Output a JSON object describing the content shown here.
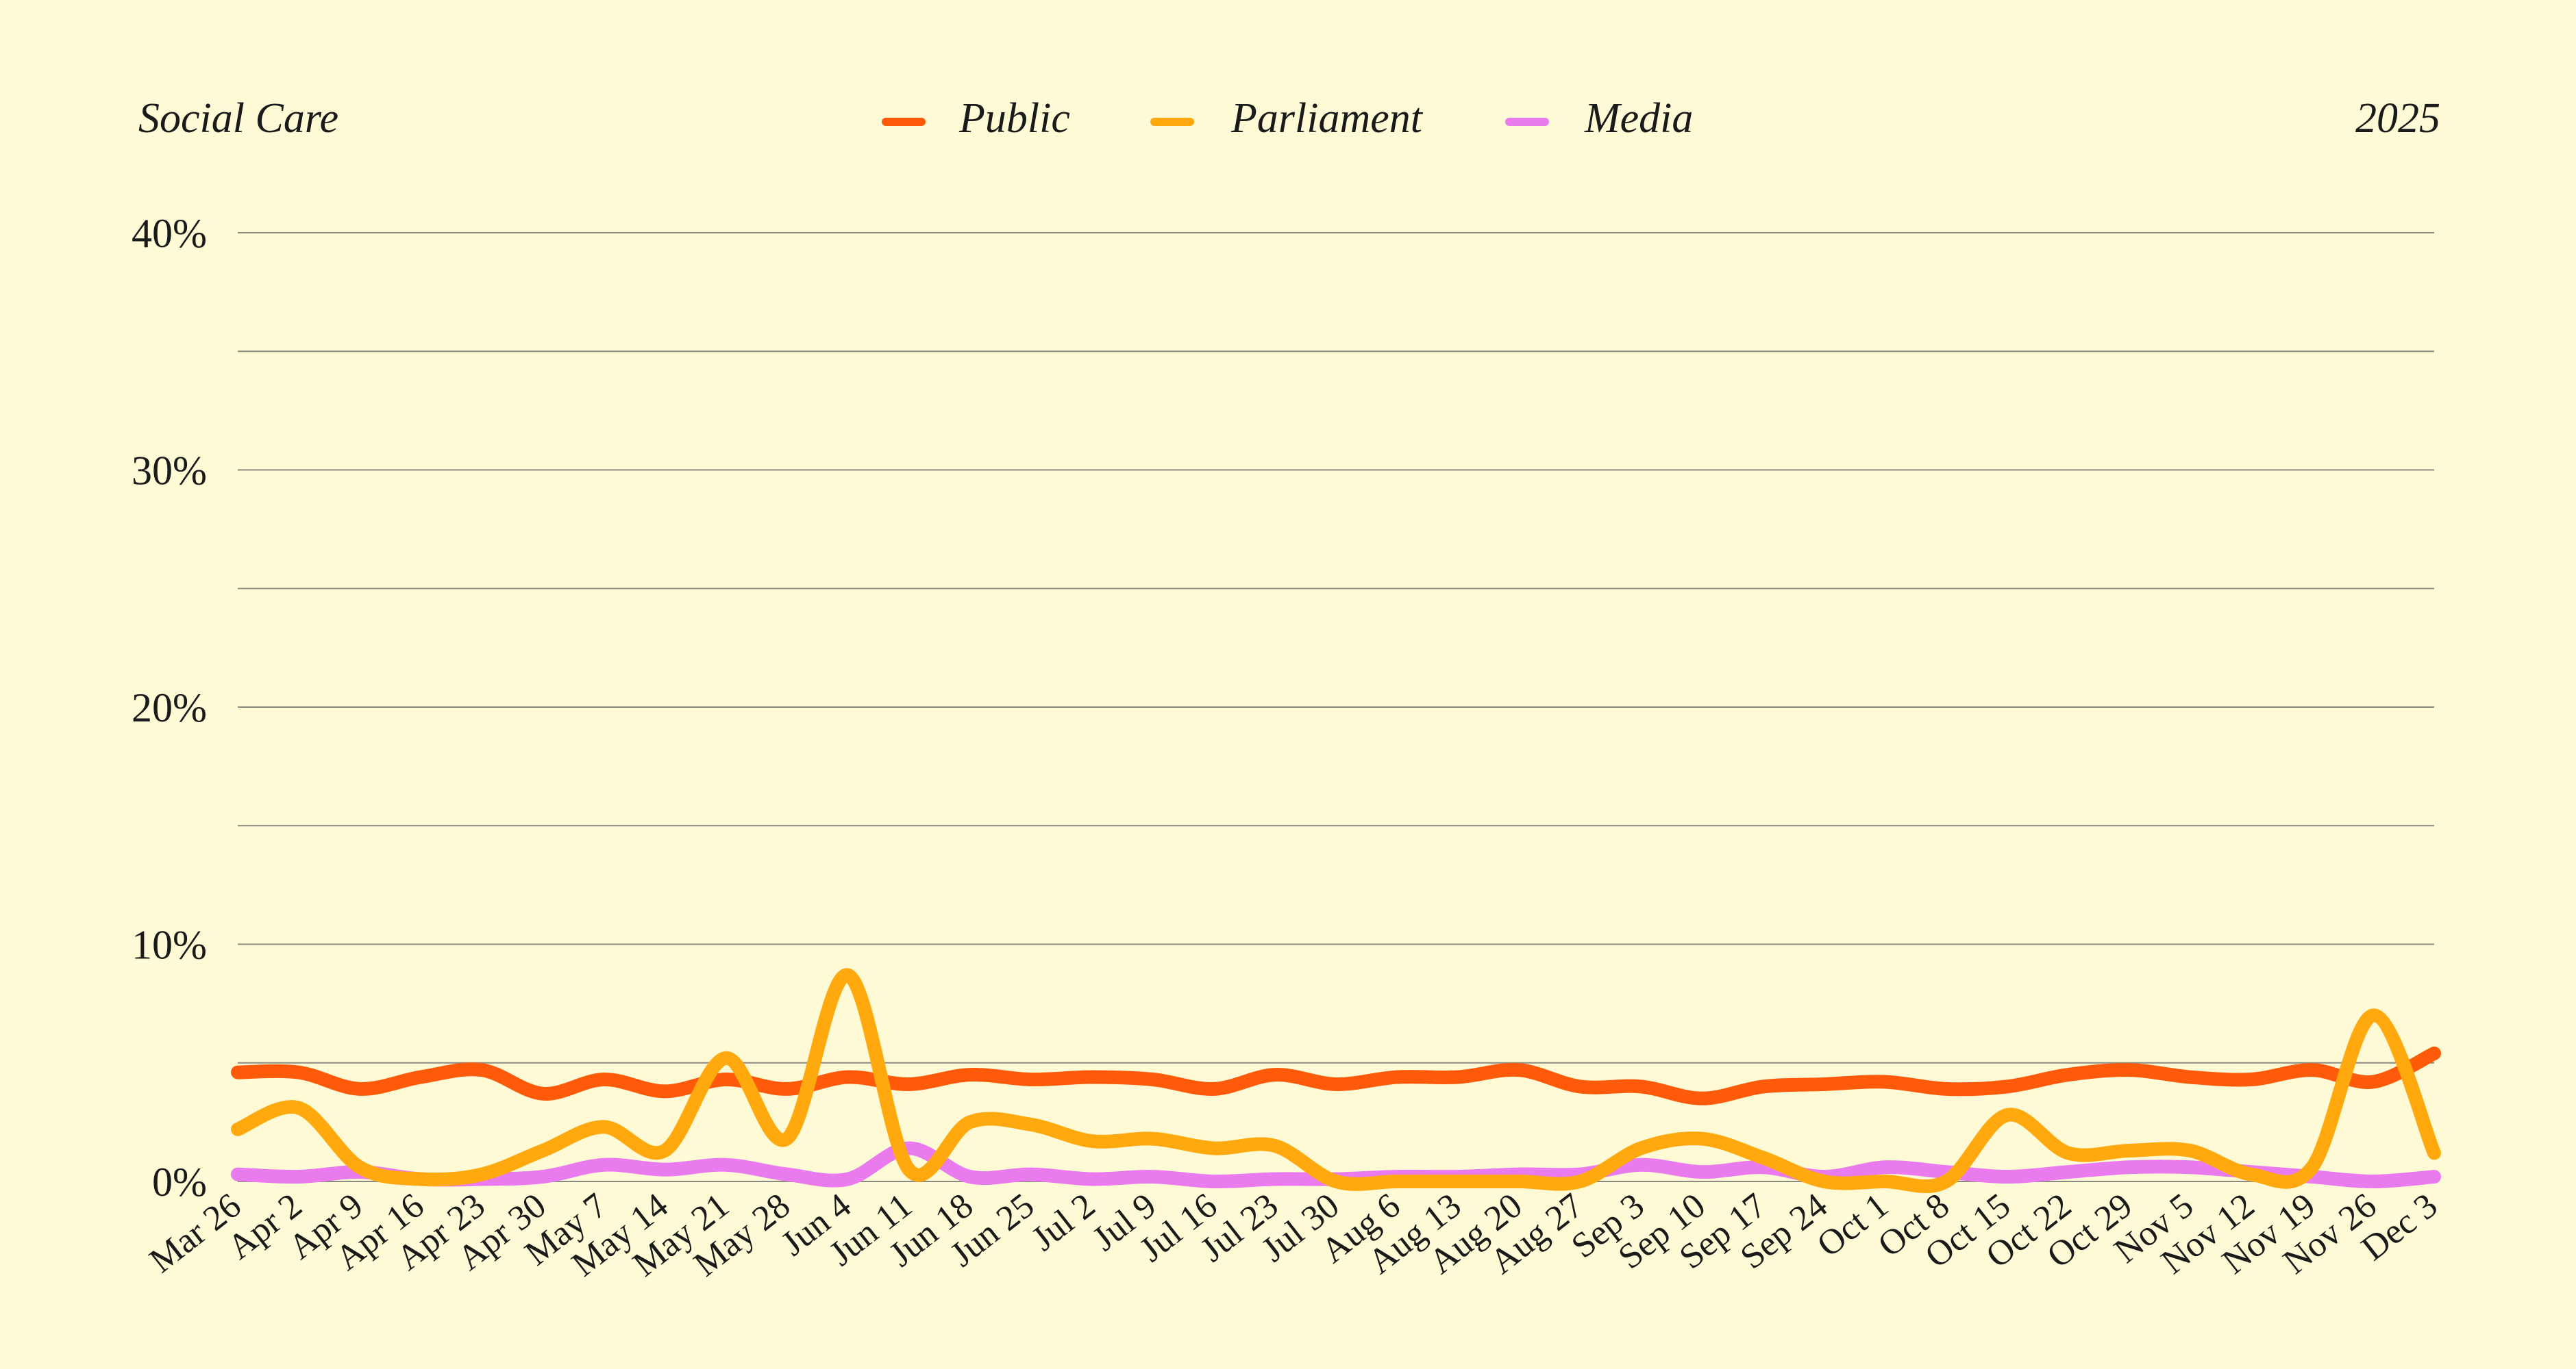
{
  "header": {
    "title": "Social Care",
    "year": "2025"
  },
  "colors": {
    "background": "#fefad6",
    "public": "#ff5a0a",
    "parliament": "#ffa90e",
    "media": "#e97bee",
    "grid": "#8a8a80"
  },
  "chart_data": {
    "type": "line",
    "title": "Social Care",
    "legend_position": "top-center",
    "grid": true,
    "ylim": [
      0,
      40
    ],
    "yticks": [
      0,
      10,
      20,
      30,
      40
    ],
    "ytick_labels": [
      "0%",
      "10%",
      "20%",
      "30%",
      "40%"
    ],
    "minor_gridlines": [
      5,
      15,
      25,
      35
    ],
    "categories": [
      "Mar 26",
      "Apr 2",
      "Apr 9",
      "Apr 16",
      "Apr 23",
      "Apr 30",
      "May 7",
      "May 14",
      "May 21",
      "May 28",
      "Jun 4",
      "Jun 11",
      "Jun 18",
      "Jun 25",
      "Jul 2",
      "Jul 9",
      "Jul 16",
      "Jul 23",
      "Jul 30",
      "Aug 6",
      "Aug 13",
      "Aug 20",
      "Aug 27",
      "Sep 3",
      "Sep 10",
      "Sep 17",
      "Sep 24",
      "Oct 1",
      "Oct 8",
      "Oct 15",
      "Oct 22",
      "Oct 29",
      "Nov 5",
      "Nov 12",
      "Nov 19",
      "Nov 26",
      "Dec 3"
    ],
    "series": [
      {
        "name": "Public",
        "color": "#ff5a0a",
        "values": [
          4.6,
          4.6,
          3.9,
          4.4,
          4.7,
          3.7,
          4.3,
          3.8,
          4.3,
          3.9,
          4.4,
          4.1,
          4.5,
          4.3,
          4.4,
          4.3,
          3.9,
          4.5,
          4.1,
          4.4,
          4.4,
          4.7,
          4.0,
          4.0,
          3.5,
          4.0,
          4.1,
          4.2,
          3.9,
          4.0,
          4.5,
          4.7,
          4.4,
          4.3,
          4.7,
          4.2,
          5.4
        ]
      },
      {
        "name": "Parliament",
        "color": "#ffa90e",
        "values": [
          2.2,
          3.1,
          0.6,
          0.1,
          0.3,
          1.3,
          2.3,
          1.3,
          5.2,
          1.8,
          8.7,
          0.5,
          2.5,
          2.4,
          1.7,
          1.8,
          1.4,
          1.5,
          0.0,
          0.0,
          0.0,
          0.0,
          0.0,
          1.4,
          1.8,
          1.0,
          0.0,
          0.0,
          0.0,
          2.8,
          1.2,
          1.3,
          1.3,
          0.3,
          0.6,
          7.0,
          1.2
        ]
      },
      {
        "name": "Media",
        "color": "#e97bee",
        "values": [
          0.3,
          0.2,
          0.4,
          0.1,
          0.1,
          0.2,
          0.7,
          0.5,
          0.7,
          0.3,
          0.1,
          1.4,
          0.2,
          0.3,
          0.1,
          0.2,
          0.0,
          0.1,
          0.1,
          0.2,
          0.2,
          0.3,
          0.3,
          0.7,
          0.4,
          0.6,
          0.2,
          0.6,
          0.4,
          0.2,
          0.4,
          0.6,
          0.6,
          0.4,
          0.2,
          0.0,
          0.2
        ]
      }
    ]
  }
}
